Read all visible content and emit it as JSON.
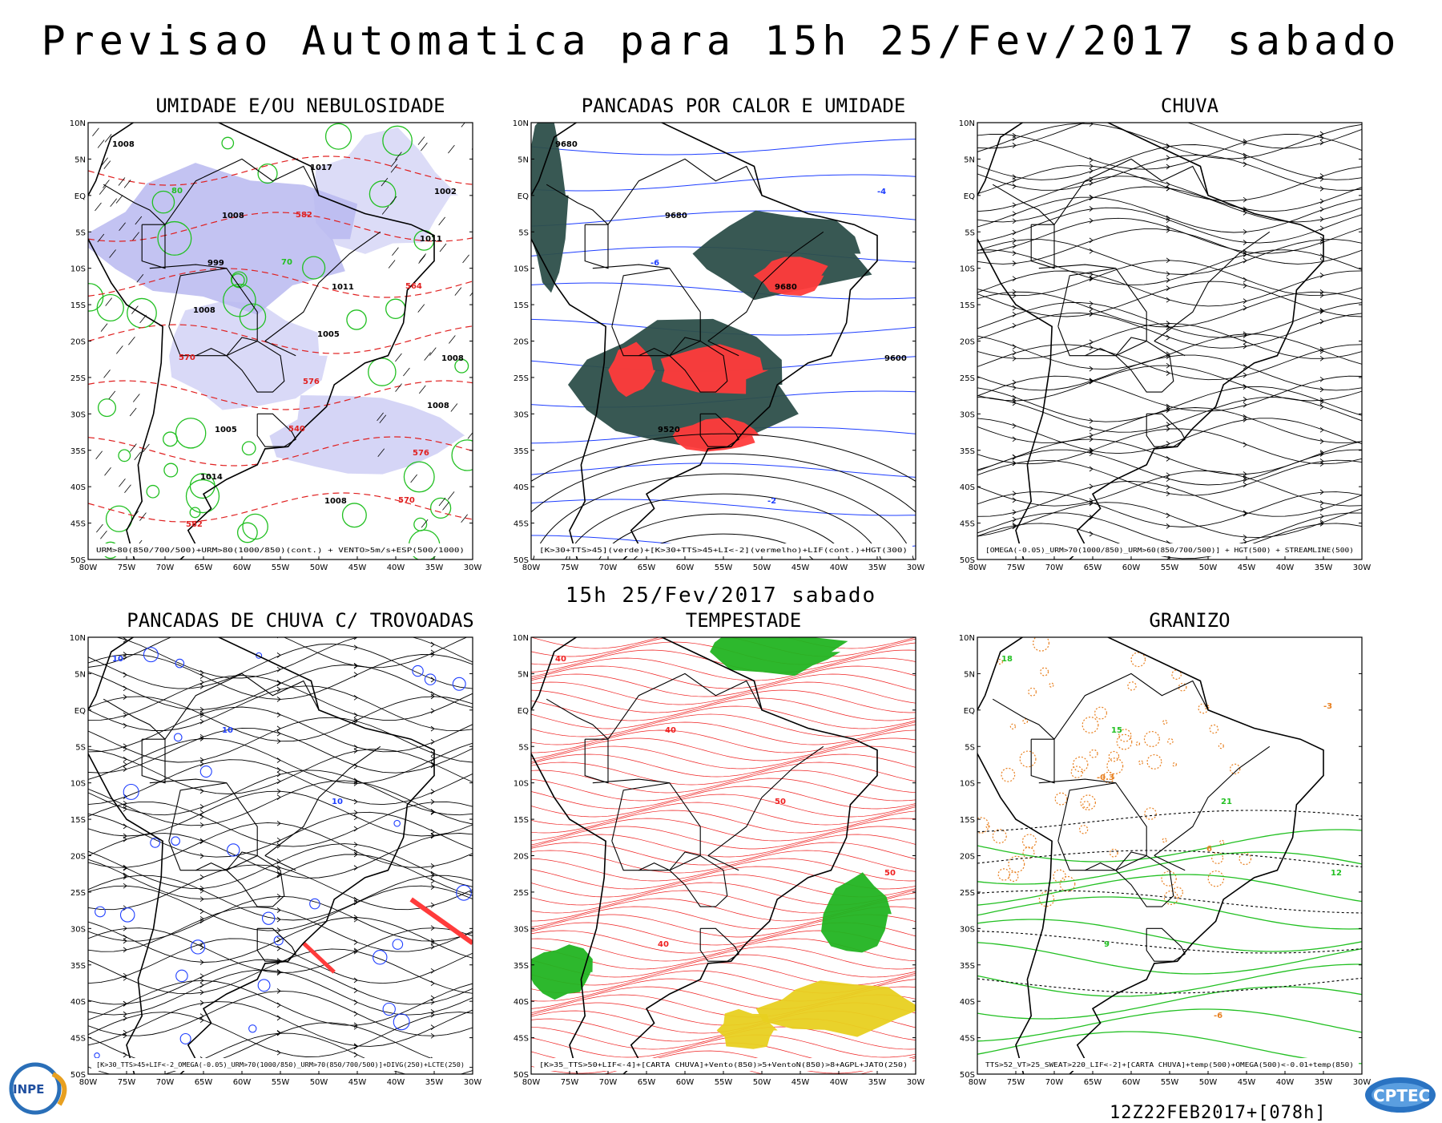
{
  "title": "Previsao Automatica  para 15h 25/Fev/2017 sabado",
  "mid_title": "15h 25/Fev/2017 sabado",
  "run_stamp": "12Z22FEB2017+[078h]",
  "logos": {
    "left": "INPE",
    "right": "CPTEC"
  },
  "axes": {
    "lat_labels": [
      "10N",
      "5N",
      "EQ",
      "5S",
      "10S",
      "15S",
      "20S",
      "25S",
      "30S",
      "35S",
      "40S",
      "45S",
      "50S"
    ],
    "lon_labels": [
      "80W",
      "75W",
      "70W",
      "65W",
      "60W",
      "55W",
      "50W",
      "45W",
      "40W",
      "35W",
      "30W"
    ]
  },
  "colors": {
    "humidity_fill": "#b9b9f0",
    "humidity_contour": "#22c022",
    "thickness": "#e02020",
    "convection_dark": "#2d4f4a",
    "convection_red": "#ff3b3b",
    "lifted_index": "#1f3fff",
    "storm_wind": "#ef2020",
    "storm_green": "#22b422",
    "storm_yellow": "#e8d020",
    "hail_orange": "#e88020"
  },
  "panels": [
    {
      "title": "UMIDADE E/OU NEBULOSIDADE",
      "caption": "URM>80(850/700/500)+URM>80(1000/850)(cont.) + VENTO>5m/s+ESP(500/1000)",
      "labels": [
        "1008",
        "1008",
        "1011",
        "1008",
        "1005",
        "1008",
        "1002",
        "999",
        "1005",
        "1008",
        "1014",
        "1017",
        "1011",
        "1008",
        "576",
        "576",
        "582",
        "582",
        "564",
        "570",
        "540",
        "570",
        "80",
        "70"
      ]
    },
    {
      "title": "PANCADAS POR CALOR E UMIDADE",
      "caption": "[K>30+TTS>45](verde)+[K>30+TTS>45+LI<-2](vermelho)+LIF(cont.)+HGT(300)",
      "labels": [
        "9680",
        "9680",
        "9680",
        "9600",
        "9520",
        "-2",
        "-4",
        "-6"
      ]
    },
    {
      "title": "CHUVA",
      "caption": "[OMEGA(-0.05)_URM>70(1000/850)_URM>60(850/700/500)] + HGT(500) + STREAMLINE(500)",
      "labels": []
    },
    {
      "title": "PANCADAS DE CHUVA C/ TROVOADAS",
      "caption": "[K>30_TTS>45+LIF<-2_OMEGA(-0.05)_URM>70(1000/850)_URM>70(850/700/500)]+DIVG(250)+LCTE(250)",
      "labels": [
        "10",
        "10",
        "10"
      ]
    },
    {
      "title": "TEMPESTADE",
      "caption": "[K>35_TTS>50+LIF<-4]+[CARTA CHUVA]+Vento(850)>5+VentoN(850)>8+AGPL+JATO(250)",
      "labels": [
        "40",
        "40",
        "50",
        "50",
        "40"
      ]
    },
    {
      "title": "GRANIZO",
      "caption": "TTS>52_VT>25_SWEAT>220_LIF<-2]+[CARTA CHUVA]+temp(500)+OMEGA(500)<-0.01+temp(850)",
      "labels": [
        "18",
        "15",
        "21",
        "12",
        "9",
        "-6",
        "-3",
        "-0.3",
        "6"
      ]
    }
  ]
}
